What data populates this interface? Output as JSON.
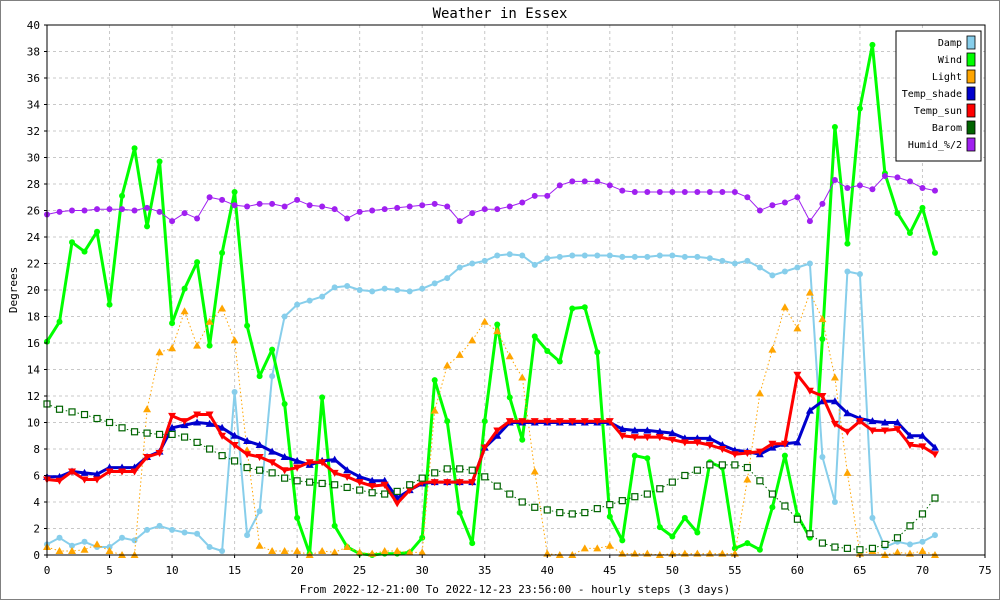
{
  "chart_data": {
    "type": "line",
    "title": "Weather in Essex",
    "xlabel": "From 2022-12-21:00 To 2022-12-23 23:56:00 - hourly steps (3 days)",
    "ylabel": "Degrees",
    "xlim": [
      0,
      75
    ],
    "ylim": [
      0,
      40
    ],
    "xticks": [
      0,
      5,
      10,
      15,
      20,
      25,
      30,
      35,
      40,
      45,
      50,
      55,
      60,
      65,
      70,
      75
    ],
    "yticks": [
      0,
      2,
      4,
      6,
      8,
      10,
      12,
      14,
      16,
      18,
      20,
      22,
      24,
      26,
      28,
      30,
      32,
      34,
      36,
      38,
      40
    ],
    "grid": true,
    "legend_position": "top-right",
    "series": [
      {
        "name": "Damp",
        "color": "#87ceeb",
        "marker": "circle",
        "style": "solid",
        "width": 2,
        "values": [
          0.8,
          1.3,
          0.7,
          1.0,
          0.6,
          0.6,
          1.3,
          1.1,
          1.9,
          2.2,
          1.9,
          1.7,
          1.6,
          0.6,
          0.3,
          12.3,
          1.5,
          3.3,
          13.5,
          18.0,
          18.9,
          19.2,
          19.5,
          20.2,
          20.3,
          20.0,
          19.9,
          20.1,
          20.0,
          19.9,
          20.1,
          20.5,
          20.9,
          21.7,
          22.0,
          22.2,
          22.6,
          22.7,
          22.6,
          21.9,
          22.4,
          22.5,
          22.6,
          22.6,
          22.6,
          22.6,
          22.5,
          22.5,
          22.5,
          22.6,
          22.6,
          22.5,
          22.5,
          22.4,
          22.2,
          22.0,
          22.2,
          21.7,
          21.1,
          21.4,
          21.7,
          22.0,
          7.4,
          4.0,
          21.4,
          21.2,
          2.8,
          0.6,
          1.0,
          0.8,
          1.0,
          1.5
        ]
      },
      {
        "name": "Wind",
        "color": "#00ff00",
        "marker": "circle",
        "style": "solid",
        "width": 3,
        "values": [
          16.1,
          17.6,
          23.6,
          22.9,
          24.4,
          18.9,
          27.1,
          30.7,
          24.8,
          29.7,
          17.5,
          20.1,
          22.1,
          15.8,
          22.8,
          27.4,
          17.3,
          13.5,
          15.5,
          11.4,
          2.8,
          0.1,
          11.9,
          2.2,
          0.6,
          0.1,
          0.0,
          0.1,
          0.1,
          0.2,
          1.3,
          13.2,
          10.1,
          3.2,
          0.9,
          10.1,
          17.4,
          11.9,
          8.7,
          16.5,
          15.4,
          14.6,
          18.6,
          18.7,
          15.3,
          2.9,
          1.1,
          7.5,
          7.3,
          2.1,
          1.4,
          2.8,
          1.7,
          7.0,
          6.6,
          0.5,
          0.9,
          0.4,
          3.6,
          7.5,
          3.0,
          1.3,
          16.3,
          32.3,
          23.5,
          33.7,
          38.5,
          28.8,
          25.8,
          24.3,
          26.2,
          22.8
        ]
      },
      {
        "name": "Light",
        "color": "#ffa500",
        "marker": "triangle",
        "style": "dotted",
        "width": 1,
        "values": [
          0.6,
          0.3,
          0.3,
          0.4,
          0.8,
          0.3,
          0.0,
          0.0,
          11.0,
          15.3,
          15.6,
          18.4,
          15.8,
          17.6,
          18.6,
          16.2,
          7.9,
          0.7,
          0.3,
          0.3,
          0.3,
          0.0,
          0.3,
          0.2,
          0.6,
          0.2,
          0.1,
          0.3,
          0.3,
          0.2,
          0.2,
          10.9,
          14.3,
          15.1,
          16.2,
          17.6,
          16.9,
          15.0,
          13.4,
          6.3,
          0.1,
          0.0,
          0.0,
          0.5,
          0.5,
          0.7,
          0.1,
          0.1,
          0.1,
          0.0,
          0.1,
          0.1,
          0.1,
          0.1,
          0.1,
          0.1,
          5.7,
          12.2,
          15.5,
          18.7,
          17.1,
          19.8,
          17.8,
          13.4,
          6.2,
          0.1,
          0.3,
          0.0,
          0.2,
          0.1,
          0.3,
          0.0
        ]
      },
      {
        "name": "Temp_shade",
        "color": "#0000cd",
        "marker": "triangle",
        "style": "solid",
        "width": 3,
        "values": [
          5.9,
          5.9,
          6.3,
          6.2,
          6.1,
          6.6,
          6.6,
          6.6,
          7.4,
          7.8,
          9.6,
          9.8,
          10.0,
          9.9,
          9.6,
          9.0,
          8.6,
          8.3,
          7.8,
          7.4,
          7.1,
          6.8,
          7.1,
          7.2,
          6.4,
          5.9,
          5.6,
          5.6,
          4.3,
          4.9,
          5.4,
          5.5,
          5.5,
          5.5,
          5.5,
          8.1,
          9.0,
          10.0,
          10.0,
          10.0,
          10.0,
          10.0,
          10.0,
          10.0,
          10.0,
          10.0,
          9.5,
          9.4,
          9.4,
          9.3,
          9.2,
          8.8,
          8.8,
          8.8,
          8.3,
          7.9,
          7.8,
          7.6,
          8.1,
          8.4,
          8.5,
          10.9,
          11.6,
          11.6,
          10.7,
          10.3,
          10.1,
          10.0,
          10.0,
          9.0,
          9.0,
          8.1
        ]
      },
      {
        "name": "Temp_sun",
        "color": "#ff0000",
        "marker": "triangle-down",
        "style": "solid",
        "width": 3,
        "values": [
          5.7,
          5.6,
          6.3,
          5.7,
          5.7,
          6.3,
          6.3,
          6.3,
          7.4,
          7.7,
          10.5,
          10.1,
          10.6,
          10.6,
          9.0,
          8.3,
          7.6,
          7.4,
          7.0,
          6.4,
          6.6,
          7.0,
          7.0,
          6.2,
          5.9,
          5.5,
          5.2,
          5.3,
          3.9,
          4.9,
          5.5,
          5.5,
          5.5,
          5.5,
          5.5,
          8.1,
          9.4,
          10.1,
          10.1,
          10.1,
          10.1,
          10.1,
          10.1,
          10.1,
          10.1,
          10.1,
          9.0,
          8.9,
          8.9,
          8.9,
          8.7,
          8.5,
          8.5,
          8.3,
          8.0,
          7.6,
          7.7,
          7.8,
          8.4,
          8.4,
          13.6,
          12.4,
          12.0,
          9.9,
          9.3,
          10.1,
          9.4,
          9.4,
          9.5,
          8.3,
          8.2,
          7.6
        ]
      },
      {
        "name": "Barom",
        "color": "#006400",
        "marker": "square",
        "style": "dotted",
        "width": 1,
        "values": [
          11.4,
          11.0,
          10.8,
          10.6,
          10.3,
          10.0,
          9.6,
          9.3,
          9.2,
          9.1,
          9.1,
          8.9,
          8.5,
          8.0,
          7.5,
          7.1,
          6.6,
          6.4,
          6.2,
          5.8,
          5.6,
          5.5,
          5.4,
          5.3,
          5.1,
          4.9,
          4.7,
          4.6,
          4.8,
          5.3,
          5.8,
          6.2,
          6.5,
          6.5,
          6.4,
          5.9,
          5.2,
          4.6,
          4.0,
          3.6,
          3.4,
          3.2,
          3.1,
          3.2,
          3.5,
          3.8,
          4.1,
          4.4,
          4.6,
          5.0,
          5.5,
          6.0,
          6.4,
          6.8,
          6.8,
          6.8,
          6.6,
          5.6,
          4.6,
          3.7,
          2.7,
          1.6,
          0.9,
          0.6,
          0.5,
          0.4,
          0.5,
          0.8,
          1.3,
          2.2,
          3.1,
          4.3
        ]
      },
      {
        "name": "Humid_%/2",
        "color": "#a020f0",
        "marker": "circle",
        "style": "solid",
        "width": 1,
        "values": [
          25.7,
          25.9,
          26.0,
          26.0,
          26.1,
          26.1,
          26.1,
          26.0,
          26.2,
          25.9,
          25.2,
          25.8,
          25.4,
          27.0,
          26.8,
          26.4,
          26.3,
          26.5,
          26.5,
          26.3,
          26.8,
          26.4,
          26.3,
          26.1,
          25.4,
          25.9,
          26.0,
          26.1,
          26.2,
          26.3,
          26.4,
          26.5,
          26.3,
          25.2,
          25.8,
          26.1,
          26.1,
          26.3,
          26.6,
          27.1,
          27.1,
          27.9,
          28.2,
          28.2,
          28.2,
          27.9,
          27.5,
          27.4,
          27.4,
          27.4,
          27.4,
          27.4,
          27.4,
          27.4,
          27.4,
          27.4,
          27.0,
          26.0,
          26.4,
          26.6,
          27.0,
          25.2,
          26.5,
          28.3,
          27.7,
          27.9,
          27.6,
          28.6,
          28.5,
          28.2,
          27.7,
          27.5
        ]
      }
    ]
  }
}
